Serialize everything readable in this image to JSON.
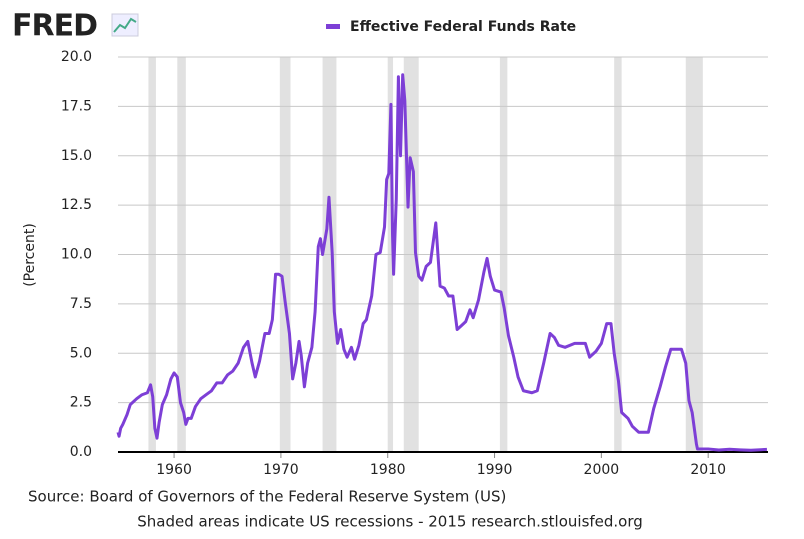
{
  "logo": "FRED",
  "chart_data": {
    "type": "line",
    "y_label": "(Percent)",
    "source": "Source: Board of Governors of the Federal Reserve System (US)",
    "note": "Shaded areas indicate US recessions - 2015 research.stlouisfed.org",
    "xlim": [
      1954.75,
      2015.6
    ],
    "xticks": [
      1960,
      1970,
      1980,
      1990,
      2000,
      2010
    ],
    "ylim": [
      0,
      20
    ],
    "yticks": [
      {
        "value": 0,
        "label": "0.0"
      },
      {
        "value": 2.5,
        "label": "2.5"
      },
      {
        "value": 5,
        "label": "5.0"
      },
      {
        "value": 7.5,
        "label": "7.5"
      },
      {
        "value": 10,
        "label": "10.0"
      },
      {
        "value": 12.5,
        "label": "12.5"
      },
      {
        "value": 15,
        "label": "15.0"
      },
      {
        "value": 17.5,
        "label": "17.5"
      },
      {
        "value": 20,
        "label": "20.0"
      }
    ],
    "grid": true,
    "recession_color": "#e1e1e1",
    "recessions": [
      [
        1957.6,
        1958.3
      ],
      [
        1960.3,
        1961.1
      ],
      [
        1969.9,
        1970.9
      ],
      [
        1973.9,
        1975.2
      ],
      [
        1980.0,
        1980.5
      ],
      [
        1981.5,
        1982.9
      ],
      [
        1990.5,
        1991.2
      ],
      [
        2001.2,
        2001.9
      ],
      [
        2007.9,
        2009.5
      ]
    ],
    "x": [
      1954.75,
      1954.85,
      1955.0,
      1955.2,
      1955.6,
      1955.9,
      1956.5,
      1957.0,
      1957.5,
      1957.8,
      1958.0,
      1958.2,
      1958.4,
      1958.6,
      1958.9,
      1959.3,
      1959.7,
      1960.0,
      1960.3,
      1960.6,
      1960.9,
      1961.1,
      1961.3,
      1961.6,
      1962.0,
      1962.5,
      1963.0,
      1963.5,
      1964.0,
      1964.5,
      1965.0,
      1965.5,
      1966.0,
      1966.5,
      1966.9,
      1967.3,
      1967.6,
      1968.0,
      1968.5,
      1968.9,
      1969.2,
      1969.5,
      1969.8,
      1970.1,
      1970.4,
      1970.8,
      1971.1,
      1971.4,
      1971.7,
      1971.9,
      1972.2,
      1972.5,
      1972.9,
      1973.2,
      1973.5,
      1973.7,
      1973.9,
      1974.3,
      1974.5,
      1974.8,
      1975.0,
      1975.3,
      1975.6,
      1975.9,
      1976.2,
      1976.6,
      1976.9,
      1977.3,
      1977.7,
      1978.0,
      1978.5,
      1978.9,
      1979.3,
      1979.7,
      1979.9,
      1980.1,
      1980.3,
      1980.45,
      1980.55,
      1980.8,
      1981.0,
      1981.2,
      1981.4,
      1981.6,
      1981.9,
      1982.1,
      1982.4,
      1982.6,
      1982.9,
      1983.2,
      1983.6,
      1984.0,
      1984.5,
      1984.9,
      1985.3,
      1985.7,
      1986.1,
      1986.5,
      1986.9,
      1987.3,
      1987.7,
      1988.0,
      1988.5,
      1989.0,
      1989.3,
      1989.6,
      1990.0,
      1990.6,
      1990.9,
      1991.3,
      1991.8,
      1992.2,
      1992.7,
      1993.5,
      1994.0,
      1994.6,
      1995.2,
      1995.6,
      1996.0,
      1996.6,
      1997.5,
      1998.5,
      1998.9,
      1999.5,
      2000.0,
      2000.5,
      2000.9,
      2001.2,
      2001.6,
      2001.9,
      2002.5,
      2002.9,
      2003.5,
      2004.4,
      2004.9,
      2005.5,
      2006.0,
      2006.5,
      2007.5,
      2007.9,
      2008.2,
      2008.5,
      2008.9,
      2009.0,
      2010.0,
      2011.0,
      2012.0,
      2013.0,
      2014.0,
      2015.5
    ],
    "series": [
      {
        "name": "Effective Federal Funds Rate",
        "color": "#7d3fd6",
        "values": [
          1.0,
          0.8,
          1.2,
          1.4,
          1.9,
          2.4,
          2.7,
          2.9,
          3.0,
          3.4,
          2.8,
          1.2,
          0.7,
          1.5,
          2.4,
          2.9,
          3.7,
          4.0,
          3.8,
          2.5,
          2.0,
          1.4,
          1.7,
          1.7,
          2.3,
          2.7,
          2.9,
          3.1,
          3.5,
          3.5,
          3.9,
          4.1,
          4.5,
          5.3,
          5.6,
          4.5,
          3.8,
          4.6,
          6.0,
          6.0,
          6.7,
          9.0,
          9.0,
          8.9,
          7.6,
          6.0,
          3.7,
          4.5,
          5.6,
          4.9,
          3.3,
          4.5,
          5.3,
          7.1,
          10.4,
          10.8,
          10.0,
          11.3,
          12.9,
          10.1,
          7.1,
          5.5,
          6.2,
          5.2,
          4.8,
          5.3,
          4.7,
          5.4,
          6.5,
          6.7,
          7.9,
          10.0,
          10.1,
          11.4,
          13.8,
          14.1,
          17.6,
          11.0,
          9.0,
          12.8,
          19.0,
          15.0,
          19.1,
          17.8,
          12.4,
          14.9,
          14.2,
          10.1,
          8.9,
          8.7,
          9.4,
          9.6,
          11.6,
          8.4,
          8.3,
          7.9,
          7.9,
          6.2,
          6.4,
          6.6,
          7.2,
          6.8,
          7.7,
          9.1,
          9.8,
          8.9,
          8.2,
          8.1,
          7.3,
          5.9,
          4.8,
          3.8,
          3.1,
          3.0,
          3.1,
          4.5,
          6.0,
          5.8,
          5.4,
          5.3,
          5.5,
          5.5,
          4.8,
          5.1,
          5.5,
          6.5,
          6.5,
          5.0,
          3.6,
          2.0,
          1.7,
          1.3,
          1.0,
          1.0,
          2.2,
          3.3,
          4.3,
          5.2,
          5.2,
          4.5,
          2.6,
          2.0,
          0.4,
          0.15,
          0.15,
          0.1,
          0.14,
          0.11,
          0.09,
          0.13
        ]
      }
    ]
  }
}
